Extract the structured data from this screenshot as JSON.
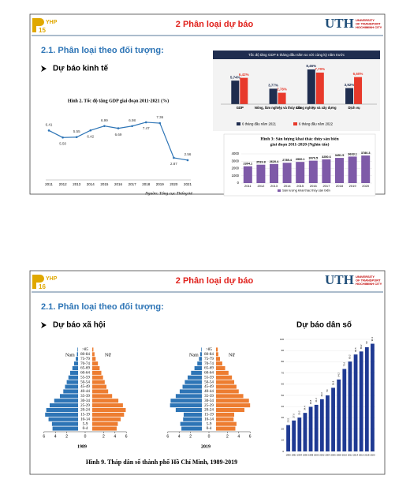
{
  "slides": [
    {
      "page_number": "15",
      "logo": "YHP",
      "title": "2 Phân loại dự báo",
      "brand": "UTH",
      "brand_sub": [
        "UNIVERSITY",
        "OF TRANSPORT",
        "HOCHIMINH CITY"
      ],
      "heading": "2.1. Phân loại theo đối tượng:",
      "bullet": "Dự báo kinh tế",
      "charts": [
        {
          "type": "line",
          "title": "Hình 2. Tốc độ tăng GDP giai đoạn 2011-2021 (%)",
          "x": [
            "2011",
            "2012",
            "2013",
            "2014",
            "2015",
            "2016",
            "2017",
            "2018",
            "2019",
            "2020",
            "2021"
          ],
          "values": [
            6.41,
            5.5,
            5.55,
            6.42,
            6.99,
            6.69,
            6.98,
            7.47,
            7.36,
            2.87,
            2.56
          ],
          "value_labels": [
            "6.41",
            "5.50",
            "5.55",
            "6.42",
            "6.99",
            "6.69",
            "6.98",
            "7.47",
            "7.36",
            "2.87",
            "2.56"
          ],
          "ylim": [
            0,
            9
          ],
          "color": "#2e75b6",
          "source": "Nguồn: Tổng cục Thống kê"
        },
        {
          "type": "bar",
          "title": "Tốc độ tăng GDP 6 tháng đầu năm so với cùng kỳ năm trước",
          "categories": [
            "GDP",
            "Nông, lâm nghiệp và thủy sản",
            "Công nghiệp và xây dựng",
            "Dịch vụ"
          ],
          "series": [
            {
              "name": "6 tháng đầu năm 2021",
              "color": "#1f2d4f",
              "values": [
                5.74,
                3.77,
                8.46,
                3.92
              ],
              "value_labels": [
                "5,74%",
                "3,77%",
                "8,46%",
                "3,92%"
              ]
            },
            {
              "name": "6 tháng đầu năm 2022",
              "color": "#e8392b",
              "values": [
                6.42,
                2.78,
                7.7,
                6.6
              ],
              "value_labels": [
                "6,42%",
                "2,78%",
                "7,70%",
                "6,60%"
              ]
            }
          ],
          "ylim": [
            0,
            10
          ]
        },
        {
          "type": "bar",
          "title": [
            "Hình 3: Sản lượng khai thác thủy sản biển",
            "giai đoạn 2011-2020 (Nghìn tấn)"
          ],
          "categories": [
            "2011",
            "2012",
            "2013",
            "2014",
            "2015",
            "2016",
            "2017",
            "2018",
            "2019",
            "2020"
          ],
          "series": [
            {
              "name": "Sản lượng khai thác thủy sản biển",
              "color": "#7e5aa8",
              "values": [
                2304.1,
                2519.8,
                2620.4,
                2785.4,
                2900.1,
                3070.5,
                3250.6,
                3451.5,
                3633.1,
                3780.3
              ]
            }
          ],
          "ylim": [
            0,
            4000
          ],
          "yticks": [
            0,
            1000,
            2000,
            3000,
            4000
          ],
          "grid": true
        }
      ]
    },
    {
      "page_number": "16",
      "logo": "YHP",
      "title": "2 Phân loại dự báo",
      "brand": "UTH",
      "brand_sub": [
        "UNIVERSITY",
        "OF TRANSPORT",
        "HOCHIMINH CITY"
      ],
      "heading": "2.1. Phân loại theo đối tượng:",
      "bullet": "Dự báo xã hội",
      "bullet2": "Dự báo dân số",
      "caption": "Hình 9. Tháp dân số thành phố Hồ Chí Minh, 1989-2019",
      "pyramid": {
        "type": "pyramid",
        "age_groups": [
          "0-4",
          "5-9",
          "10-14",
          "15-19",
          "20-24",
          "25-29",
          "30-34",
          "35-39",
          "40-44",
          "45-49",
          "50-54",
          "55-59",
          "60-64",
          "65-69",
          "70-74",
          "75-79",
          "80-84",
          ">85"
        ],
        "male_label": "Nam",
        "female_label": "Nữ",
        "male_color": "#2e75b6",
        "female_color": "#ed7d31",
        "xticks": [
          {
            "value": -6,
            "label": "6"
          },
          {
            "value": -4,
            "label": "4"
          },
          {
            "value": -2,
            "label": "2"
          },
          0,
          2,
          4,
          6
        ],
        "panels": [
          {
            "year": "1989",
            "male": [
              4.5,
              4.6,
              5.2,
              5.8,
              5.6,
              5.0,
              4.2,
              3.2,
              2.6,
              2.3,
              2.0,
              1.7,
              1.4,
              1.0,
              0.7,
              0.4,
              0.2,
              0.1
            ],
            "female": [
              4.3,
              4.5,
              5.0,
              5.6,
              5.9,
              5.4,
              4.6,
              3.5,
              2.8,
              2.5,
              2.2,
              1.9,
              1.6,
              1.3,
              1.0,
              0.6,
              0.4,
              0.2
            ]
          },
          {
            "year": "2019",
            "male": [
              3.6,
              3.8,
              3.3,
              3.2,
              4.6,
              5.6,
              5.5,
              4.6,
              3.9,
              3.4,
              3.0,
              2.5,
              1.9,
              1.3,
              0.8,
              0.5,
              0.3,
              0.1
            ],
            "female": [
              3.4,
              3.6,
              3.1,
              3.2,
              5.0,
              6.0,
              5.8,
              4.8,
              4.0,
              3.6,
              3.2,
              2.8,
              2.2,
              1.6,
              1.1,
              0.7,
              0.4,
              0.3
            ]
          }
        ]
      },
      "population": {
        "type": "bar",
        "categories": [
          "1990",
          "1992",
          "1994",
          "1996",
          "1998",
          "2000",
          "2002",
          "2004",
          "2006",
          "2008",
          "2010",
          "2012",
          "2014",
          "2016",
          "2018",
          "2020"
        ],
        "values": [
          23.5,
          27.6,
          30.2,
          34.4,
          39.8,
          41.6,
          46.6,
          50.0,
          56.8,
          64.2,
          73.6,
          80.2,
          86.5,
          89.2,
          93.0,
          96.1
        ],
        "color": "#1f3a93",
        "ylim": [
          0,
          100
        ],
        "yticks": [
          0,
          10,
          20,
          30,
          40,
          50,
          60,
          70,
          80,
          90,
          100
        ],
        "grid": true
      }
    }
  ]
}
